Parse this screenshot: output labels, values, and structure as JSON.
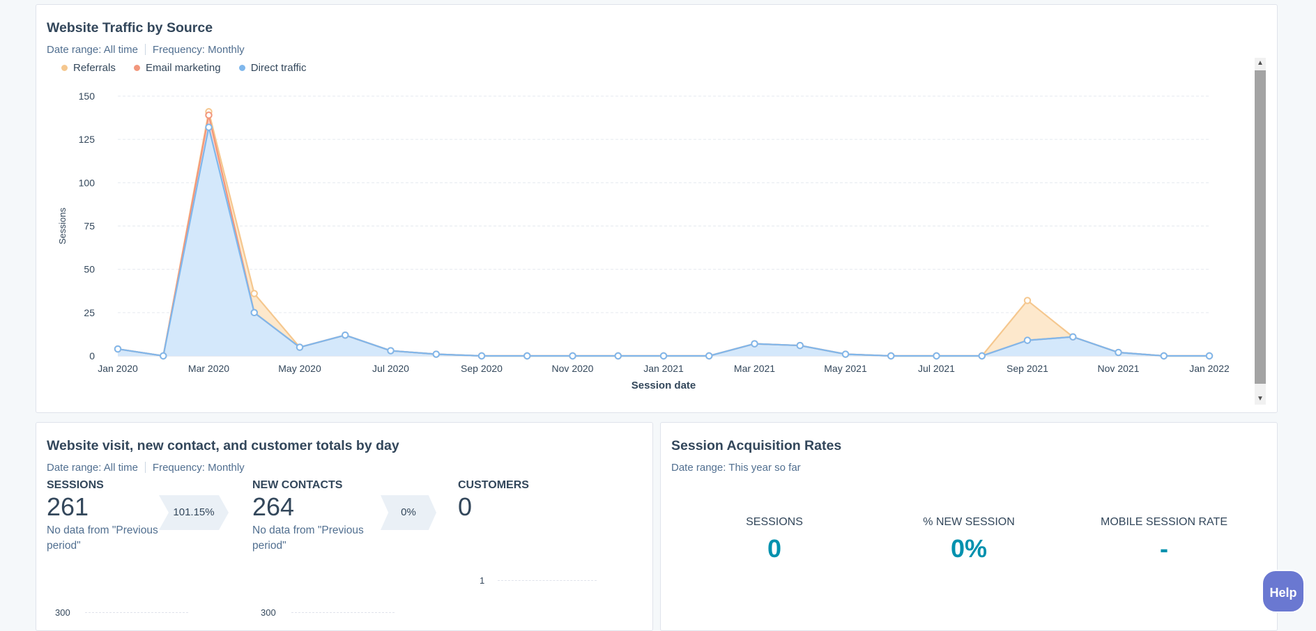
{
  "traffic_card": {
    "title": "Website Traffic by Source",
    "date_range_label": "Date range:",
    "date_range_value": "All time",
    "frequency_label": "Frequency:",
    "frequency_value": "Monthly"
  },
  "chart_data": {
    "type": "area",
    "title": "Website Traffic by Source",
    "xlabel": "Session date",
    "ylabel": "Sessions",
    "ylim": [
      0,
      150
    ],
    "yticks": [
      0,
      25,
      50,
      75,
      100,
      125,
      150
    ],
    "grid": true,
    "legend_position": "top-left",
    "x": [
      "2020-01",
      "2020-02",
      "2020-03",
      "2020-04",
      "2020-05",
      "2020-06",
      "2020-07",
      "2020-08",
      "2020-09",
      "2020-10",
      "2020-11",
      "2020-12",
      "2021-01",
      "2021-02",
      "2021-03",
      "2021-04",
      "2021-05",
      "2021-06",
      "2021-07",
      "2021-08",
      "2021-09",
      "2021-10",
      "2021-11",
      "2021-12",
      "2022-01"
    ],
    "xtick_labels": [
      {
        "label": "Jan 2020",
        "x": "2020-01"
      },
      {
        "label": "Mar 2020",
        "x": "2020-03"
      },
      {
        "label": "May 2020",
        "x": "2020-05"
      },
      {
        "label": "Jul 2020",
        "x": "2020-07"
      },
      {
        "label": "Sep 2020",
        "x": "2020-09"
      },
      {
        "label": "Nov 2020",
        "x": "2020-11"
      },
      {
        "label": "Jan 2021",
        "x": "2021-01"
      },
      {
        "label": "Mar 2021",
        "x": "2021-03"
      },
      {
        "label": "May 2021",
        "x": "2021-05"
      },
      {
        "label": "Jul 2021",
        "x": "2021-07"
      },
      {
        "label": "Sep 2021",
        "x": "2021-09"
      },
      {
        "label": "Nov 2021",
        "x": "2021-11"
      },
      {
        "label": "Jan 2022",
        "x": "2022-01"
      }
    ],
    "series": [
      {
        "name": "Referrals",
        "color": "#f5c78e",
        "values": [
          4,
          0,
          141,
          36,
          5,
          12,
          3,
          1,
          0,
          0,
          0,
          0,
          0,
          0,
          7,
          6,
          1,
          0,
          0,
          0,
          32,
          11,
          2,
          0,
          0
        ]
      },
      {
        "name": "Email marketing",
        "color": "#f2977c",
        "values": [
          4,
          0,
          139,
          25,
          5,
          12,
          3,
          1,
          0,
          0,
          0,
          0,
          0,
          0,
          7,
          6,
          1,
          0,
          0,
          0,
          9,
          11,
          2,
          0,
          0
        ]
      },
      {
        "name": "Direct traffic",
        "color": "#7fb7ec",
        "values": [
          4,
          0,
          132,
          25,
          5,
          12,
          3,
          1,
          0,
          0,
          0,
          0,
          0,
          0,
          7,
          6,
          1,
          0,
          0,
          0,
          9,
          11,
          2,
          0,
          0
        ]
      }
    ]
  },
  "totals_card": {
    "title": "Website visit, new contact, and customer totals by day",
    "date_range_label": "Date range:",
    "date_range_value": "All time",
    "frequency_label": "Frequency:",
    "frequency_value": "Monthly",
    "sessions": {
      "label": "SESSIONS",
      "value": "261",
      "note": "No data from \"Previous period\""
    },
    "rate1": "101.15%",
    "new_contacts": {
      "label": "NEW CONTACTS",
      "value": "264",
      "note": "No data from \"Previous period\""
    },
    "rate2": "0%",
    "customers": {
      "label": "CUSTOMERS",
      "value": "0"
    },
    "mini_ticks": {
      "sessions": "300",
      "contacts": "300",
      "customers": "1"
    }
  },
  "acq_card": {
    "title": "Session Acquisition Rates",
    "date_range_label": "Date range:",
    "date_range_value": "This year so far",
    "metrics": [
      {
        "label": "SESSIONS",
        "value": "0"
      },
      {
        "label": "% NEW SESSION",
        "value": "0%"
      },
      {
        "label": "MOBILE SESSION RATE",
        "value": "-"
      }
    ]
  },
  "help_label": "Help",
  "scrollbar": {
    "up_icon": "scroll-up-arrow-icon",
    "down_icon": "scroll-down-arrow-icon"
  }
}
